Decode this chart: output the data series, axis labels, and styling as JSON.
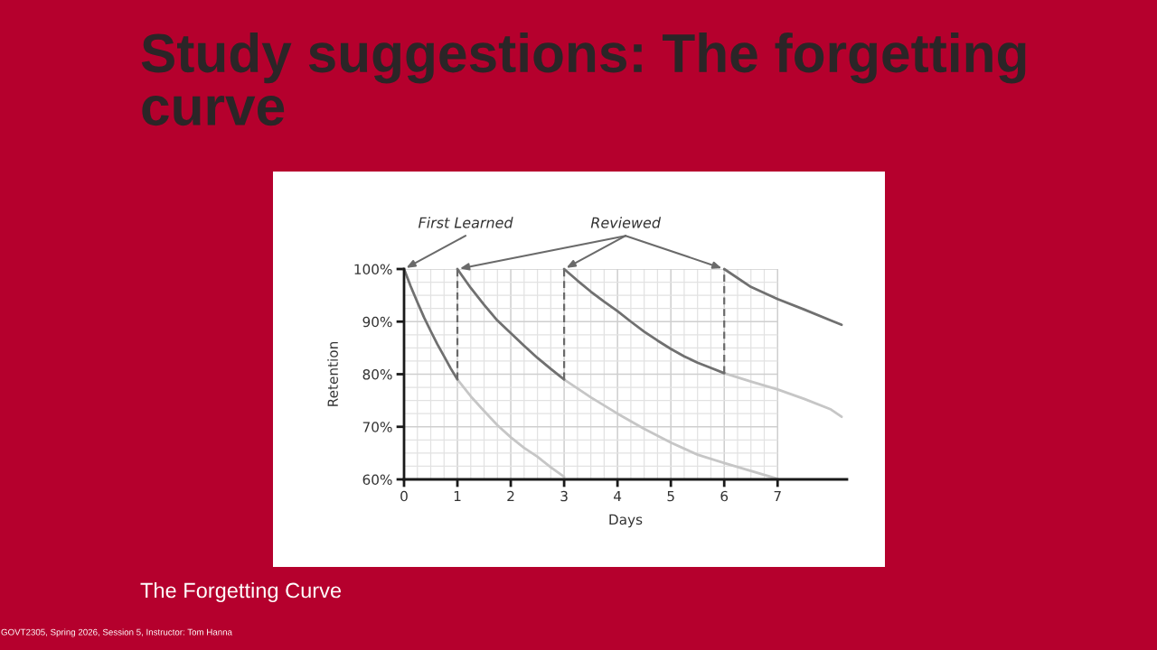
{
  "chart_data": {
    "type": "line",
    "title": "Study suggestions: The forgetting curve",
    "xlabel": "Days",
    "ylabel": "Retention",
    "xlim": [
      0,
      8.3
    ],
    "ylim": [
      60,
      100
    ],
    "xticks": [
      0,
      1,
      2,
      3,
      4,
      5,
      6,
      7
    ],
    "yticks": [
      {
        "value": 60,
        "label": "60%"
      },
      {
        "value": 70,
        "label": "70%"
      },
      {
        "value": 80,
        "label": "80%"
      },
      {
        "value": 90,
        "label": "90%"
      },
      {
        "value": 100,
        "label": "100%"
      }
    ],
    "grid": true,
    "series": [
      {
        "color": "#c6c6c6",
        "x": [
          1,
          1.25,
          1.5,
          1.75,
          2,
          2.25,
          2.5,
          2.75,
          3
        ],
        "values": [
          79,
          75.8,
          73,
          70.3,
          68,
          66,
          64.3,
          62.3,
          60.5
        ]
      },
      {
        "color": "#c6c6c6",
        "x": [
          3,
          3.5,
          4,
          4.5,
          5,
          5.5,
          6,
          6.5,
          7
        ],
        "values": [
          79,
          75.6,
          72.5,
          69.6,
          67,
          64.7,
          63.1,
          61.6,
          60.1
        ]
      },
      {
        "color": "#c6c6c6",
        "x": [
          6,
          6.5,
          7,
          7.5,
          8,
          8.2
        ],
        "values": [
          80.2,
          78.6,
          77.1,
          75.3,
          73.3,
          71.9
        ]
      },
      {
        "color": "#707070",
        "x": [
          0,
          0.125,
          0.25,
          0.375,
          0.5,
          0.625,
          0.75,
          0.875,
          1
        ],
        "values": [
          100,
          96.7,
          93.7,
          90.8,
          88.2,
          85.7,
          83.4,
          81.1,
          79
        ]
      },
      {
        "color": "#707070",
        "x": [
          1,
          1.25,
          1.5,
          1.75,
          2,
          2.25,
          2.5,
          2.75,
          3
        ],
        "values": [
          100,
          96.4,
          93.2,
          90.2,
          87.8,
          85.4,
          83.1,
          81,
          79
        ]
      },
      {
        "color": "#707070",
        "x": [
          3,
          3.25,
          3.5,
          3.75,
          4,
          4.25,
          4.5,
          4.75,
          5,
          5.25,
          5.5,
          5.75,
          6
        ],
        "values": [
          100,
          97.8,
          95.7,
          93.8,
          92,
          90,
          88.1,
          86.4,
          84.8,
          83.4,
          82.2,
          81.2,
          80.2
        ]
      },
      {
        "color": "#707070",
        "x": [
          6,
          6.5,
          7,
          7.5,
          8,
          8.2
        ],
        "values": [
          100,
          96.6,
          94.3,
          92.3,
          90.2,
          89.4
        ]
      },
      {
        "color": "#6a6a6a",
        "line_style": "dashed",
        "x": [
          1,
          1
        ],
        "values": [
          79,
          100
        ]
      },
      {
        "color": "#6a6a6a",
        "line_style": "dashed",
        "x": [
          3,
          3
        ],
        "values": [
          79,
          100
        ]
      },
      {
        "color": "#6a6a6a",
        "line_style": "dashed",
        "x": [
          6,
          6
        ],
        "values": [
          80.2,
          100
        ]
      }
    ],
    "annotations": [
      {
        "text": "First Learned",
        "x": 0,
        "y": 100
      },
      {
        "text": "Reviewed",
        "x": 3,
        "y": 100
      },
      "The Forgetting Curve",
      "GOVT2305, Spring 2026, Session 5, Instructor: Tom Hanna"
    ]
  }
}
